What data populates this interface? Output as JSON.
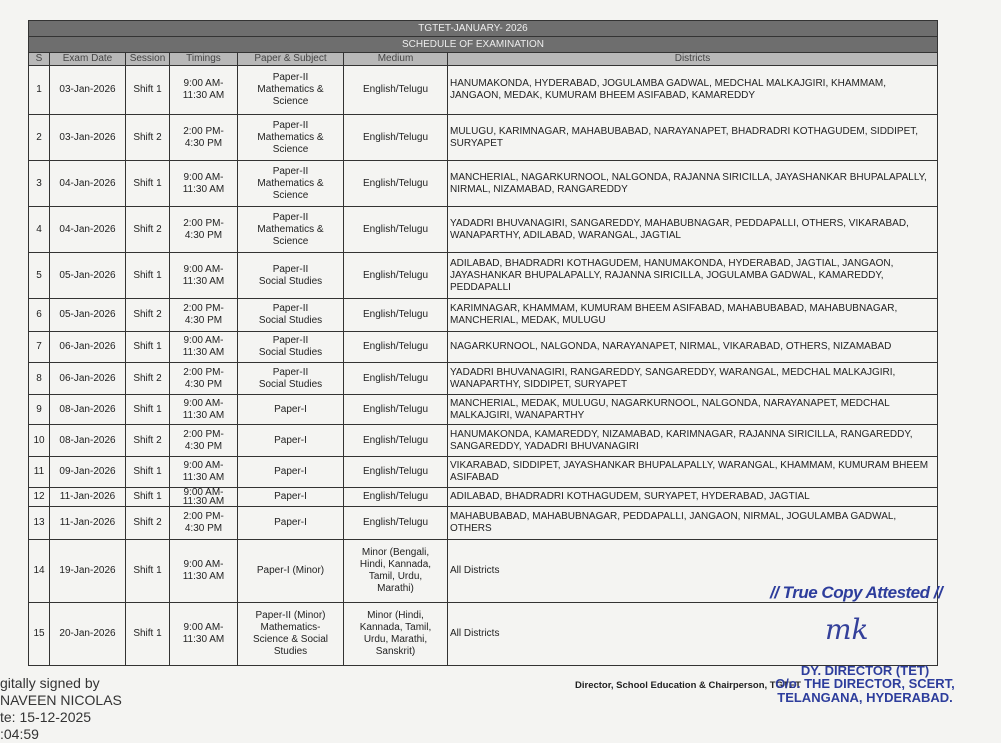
{
  "document": {
    "title": "TGTET-JANUARY- 2026",
    "subtitle": "SCHEDULE OF EXAMINATION",
    "columns": [
      "S",
      "Exam Date",
      "Session",
      "Timings",
      "Paper & Subject",
      "Medium",
      "Districts"
    ],
    "rows": [
      {
        "s": "1",
        "date": "03-Jan-2026",
        "session": "Shift 1",
        "timings": "9:00 AM-\n11:30 AM",
        "paper": "Paper-II\nMathematics &\nScience",
        "medium": "English/Telugu",
        "districts": "HANUMAKONDA, HYDERABAD, JOGULAMBA GADWAL, MEDCHAL MALKAJGIRI, KHAMMAM, JANGAON, MEDAK, KUMURAM BHEEM ASIFABAD, KAMAREDDY"
      },
      {
        "s": "2",
        "date": "03-Jan-2026",
        "session": "Shift 2",
        "timings": "2:00 PM-\n4:30 PM",
        "paper": "Paper-II\nMathematics &\nScience",
        "medium": "English/Telugu",
        "districts": "MULUGU, KARIMNAGAR, MAHABUBABAD, NARAYANAPET, BHADRADRI KOTHAGUDEM, SIDDIPET, SURYAPET"
      },
      {
        "s": "3",
        "date": "04-Jan-2026",
        "session": "Shift 1",
        "timings": "9:00 AM-\n11:30 AM",
        "paper": "Paper-II\nMathematics &\nScience",
        "medium": "English/Telugu",
        "districts": "MANCHERIAL, NAGARKURNOOL, NALGONDA, RAJANNA SIRICILLA, JAYASHANKAR BHUPALAPALLY, NIRMAL, NIZAMABAD, RANGAREDDY"
      },
      {
        "s": "4",
        "date": "04-Jan-2026",
        "session": "Shift 2",
        "timings": "2:00 PM-\n4:30 PM",
        "paper": "Paper-II\nMathematics &\nScience",
        "medium": "English/Telugu",
        "districts": "YADADRI BHUVANAGIRI, SANGAREDDY, MAHABUBNAGAR, PEDDAPALLI, OTHERS, VIKARABAD, WANAPARTHY, ADILABAD, WARANGAL, JAGTIAL"
      },
      {
        "s": "5",
        "date": "05-Jan-2026",
        "session": "Shift 1",
        "timings": "9:00 AM-\n11:30 AM",
        "paper": "Paper-II\nSocial Studies",
        "medium": "English/Telugu",
        "districts": "ADILABAD, BHADRADRI KOTHAGUDEM, HANUMAKONDA, HYDERABAD, JAGTIAL, JANGAON, JAYASHANKAR BHUPALAPALLY, RAJANNA SIRICILLA, JOGULAMBA GADWAL, KAMAREDDY, PEDDAPALLI"
      },
      {
        "s": "6",
        "date": "05-Jan-2026",
        "session": "Shift 2",
        "timings": "2:00 PM-\n4:30 PM",
        "paper": "Paper-II\nSocial Studies",
        "medium": "English/Telugu",
        "districts": "KARIMNAGAR, KHAMMAM, KUMURAM BHEEM ASIFABAD, MAHABUBABAD, MAHABUBNAGAR, MANCHERIAL, MEDAK, MULUGU"
      },
      {
        "s": "7",
        "date": "06-Jan-2026",
        "session": "Shift 1",
        "timings": "9:00 AM-\n11:30 AM",
        "paper": "Paper-II\nSocial Studies",
        "medium": "English/Telugu",
        "districts": "NAGARKURNOOL, NALGONDA, NARAYANAPET, NIRMAL, VIKARABAD, OTHERS, NIZAMABAD"
      },
      {
        "s": "8",
        "date": "06-Jan-2026",
        "session": "Shift 2",
        "timings": "2:00 PM-\n4:30 PM",
        "paper": "Paper-II\nSocial Studies",
        "medium": "English/Telugu",
        "districts": "YADADRI BHUVANAGIRI, RANGAREDDY, SANGAREDDY, WARANGAL, MEDCHAL MALKAJGIRI, WANAPARTHY, SIDDIPET, SURYAPET"
      },
      {
        "s": "9",
        "date": "08-Jan-2026",
        "session": "Shift 1",
        "timings": "9:00 AM-\n11:30 AM",
        "paper": "Paper-I",
        "medium": "English/Telugu",
        "districts": "MANCHERIAL, MEDAK, MULUGU, NAGARKURNOOL, NALGONDA, NARAYANAPET, MEDCHAL MALKAJGIRI, WANAPARTHY"
      },
      {
        "s": "10",
        "date": "08-Jan-2026",
        "session": "Shift 2",
        "timings": "2:00 PM-\n4:30 PM",
        "paper": "Paper-I",
        "medium": "English/Telugu",
        "districts": "HANUMAKONDA, KAMAREDDY, NIZAMABAD, KARIMNAGAR, RAJANNA SIRICILLA, RANGAREDDY, SANGAREDDY, YADADRI BHUVANAGIRI"
      },
      {
        "s": "11",
        "date": "09-Jan-2026",
        "session": "Shift 1",
        "timings": "9:00 AM-\n11:30 AM",
        "paper": "Paper-I",
        "medium": "English/Telugu",
        "districts": "VIKARABAD, SIDDIPET, JAYASHANKAR BHUPALAPALLY, WARANGAL, KHAMMAM, KUMURAM BHEEM ASIFABAD"
      },
      {
        "s": "12",
        "date": "11-Jan-2026",
        "session": "Shift 1",
        "timings": "9:00 AM-\n11:30 AM",
        "paper": "Paper-I",
        "medium": "English/Telugu",
        "districts": "ADILABAD, BHADRADRI KOTHAGUDEM, SURYAPET, HYDERABAD, JAGTIAL"
      },
      {
        "s": "13",
        "date": "11-Jan-2026",
        "session": "Shift 2",
        "timings": "2:00 PM-\n4:30 PM",
        "paper": "Paper-I",
        "medium": "English/Telugu",
        "districts": "MAHABUBABAD, MAHABUBNAGAR, PEDDAPALLI, JANGAON, NIRMAL, JOGULAMBA GADWAL, OTHERS"
      },
      {
        "s": "14",
        "date": "19-Jan-2026",
        "session": "Shift 1",
        "timings": "9:00 AM-\n11:30 AM",
        "paper": "Paper-I (Minor)",
        "medium": "Minor (Bengali,\nHindi, Kannada,\nTamil, Urdu,\nMarathi)",
        "districts": "All Districts"
      },
      {
        "s": "15",
        "date": "20-Jan-2026",
        "session": "Shift 1",
        "timings": "9:00 AM-\n11:30 AM",
        "paper": "Paper-II (Minor)\nMathematics-\nScience & Social\nStudies",
        "medium": "Minor (Hindi,\nKannada, Tamil,\nUrdu, Marathi,\nSanskrit)",
        "districts": "All Districts"
      }
    ]
  },
  "footer": {
    "digital_signature": [
      "gitally signed by",
      "NAVEEN NICOLAS",
      "te: 15-12-2025",
      ":04:59"
    ],
    "signatory": "Director, School Education & Chairperson, TGTET"
  },
  "stamp": {
    "attested": "// True Copy Attested //",
    "signature": "mk",
    "lines": [
      "DY. DIRECTOR (TET)",
      "O/o. THE DIRECTOR, SCERT,",
      "TELANGANA, HYDERABAD."
    ],
    "color": "#2d3d9c"
  }
}
